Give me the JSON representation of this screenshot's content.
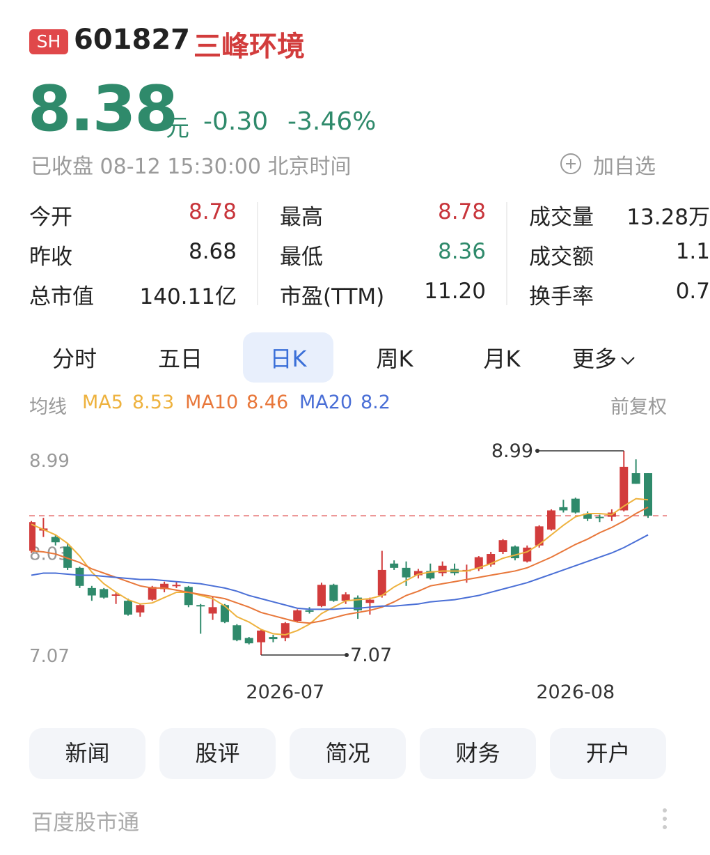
{
  "header": {
    "market": "SH",
    "code": "601827",
    "name": "三峰环境",
    "price": "8.38",
    "unit": "元",
    "change": "-0.30",
    "change_pct": "-3.46%",
    "status": "已收盘 08-12 15:30:00 北京时间",
    "watch": "加自选"
  },
  "stats": [
    [
      {
        "label": "今开",
        "value": "8.78"
      },
      {
        "label": "最高",
        "value": "8.78"
      },
      {
        "label": "成交量",
        "value": "13.28万"
      }
    ],
    [
      {
        "label": "昨收",
        "value": "8.68"
      },
      {
        "label": "最低",
        "value": "8.36"
      },
      {
        "label": "成交额",
        "value": "1.1"
      }
    ],
    [
      {
        "label": "总市值",
        "value": "140.11亿"
      },
      {
        "label": "市盈(TTM)",
        "value": "11.20"
      },
      {
        "label": "换手率",
        "value": "0.7"
      }
    ]
  ],
  "tabs": [
    "分时",
    "五日",
    "日K",
    "周K",
    "月K",
    "更多"
  ],
  "ma_label": "均线",
  "adjust": "前复权",
  "chart_data": {
    "type": "candlestick",
    "categories": [
      null,
      null,
      null,
      null,
      null,
      null,
      null,
      null,
      null,
      null,
      null,
      null,
      null,
      null,
      null,
      null,
      null,
      null,
      null,
      null,
      null,
      "2026-07",
      null,
      null,
      null,
      null,
      null,
      null,
      null,
      null,
      null,
      null,
      null,
      null,
      null,
      null,
      null,
      null,
      null,
      null,
      null,
      null,
      null,
      null,
      null,
      "2026-08",
      null,
      null,
      null,
      null,
      null,
      null
    ],
    "open": [
      8.05,
      8.24,
      8.18,
      8.09,
      7.89,
      7.7,
      7.69,
      7.63,
      7.58,
      7.47,
      7.59,
      7.69,
      7.72,
      7.71,
      7.54,
      7.46,
      7.54,
      7.35,
      7.23,
      7.19,
      7.24,
      7.23,
      7.39,
      7.49,
      7.53,
      7.73,
      7.58,
      7.61,
      7.56,
      7.63,
      7.93,
      7.89,
      7.82,
      7.86,
      7.84,
      7.88,
      7.86,
      7.88,
      7.92,
      8.04,
      8.09,
      7.95,
      8.1,
      8.25,
      8.46,
      8.54,
      8.4,
      8.37,
      8.37,
      8.43,
      8.78,
      8.78
    ],
    "high": [
      8.33,
      8.36,
      8.2,
      8.12,
      7.9,
      7.72,
      7.7,
      7.66,
      7.6,
      7.55,
      7.72,
      7.76,
      7.76,
      7.72,
      7.55,
      7.62,
      7.55,
      7.36,
      7.24,
      7.31,
      7.26,
      7.38,
      7.5,
      7.52,
      7.75,
      7.74,
      7.66,
      7.63,
      7.61,
      8.05,
      7.96,
      7.95,
      7.88,
      7.93,
      7.95,
      7.93,
      7.92,
      8.0,
      8.04,
      8.16,
      8.1,
      8.1,
      8.29,
      8.44,
      8.53,
      8.55,
      8.42,
      8.39,
      8.44,
      8.99,
      8.91,
      8.78
    ],
    "low": [
      8.03,
      8.18,
      8.1,
      7.87,
      7.7,
      7.58,
      7.6,
      7.55,
      7.44,
      7.43,
      7.58,
      7.66,
      7.7,
      7.52,
      7.27,
      7.4,
      7.37,
      7.2,
      7.17,
      7.07,
      7.19,
      7.2,
      7.38,
      7.46,
      7.52,
      7.57,
      7.55,
      7.41,
      7.45,
      7.61,
      7.87,
      7.72,
      7.79,
      7.78,
      7.81,
      7.82,
      7.75,
      7.86,
      7.9,
      8.02,
      7.96,
      7.94,
      8.08,
      8.24,
      8.41,
      8.4,
      8.33,
      8.32,
      8.33,
      8.42,
      8.68,
      8.36
    ],
    "close": [
      8.32,
      8.26,
      8.13,
      7.89,
      7.72,
      7.63,
      7.61,
      7.64,
      7.45,
      7.54,
      7.71,
      7.74,
      7.73,
      7.54,
      7.53,
      7.52,
      7.38,
      7.21,
      7.18,
      7.3,
      7.22,
      7.37,
      7.49,
      7.48,
      7.73,
      7.58,
      7.64,
      7.49,
      7.59,
      7.87,
      7.89,
      7.8,
      7.86,
      7.79,
      7.91,
      7.84,
      7.87,
      7.99,
      8.02,
      8.15,
      7.98,
      8.08,
      8.28,
      8.43,
      8.43,
      8.41,
      8.35,
      8.36,
      8.41,
      8.84,
      8.68,
      8.38
    ],
    "up_color": "#d23c3c",
    "down_color": "#2f8a6b",
    "series": [
      {
        "name": "MA5",
        "color": "#eeb23e",
        "values": [
          8.3,
          8.25,
          8.2,
          8.12,
          8.0,
          7.85,
          7.74,
          7.66,
          7.59,
          7.55,
          7.56,
          7.61,
          7.66,
          7.66,
          7.63,
          7.6,
          7.53,
          7.43,
          7.38,
          7.31,
          7.27,
          7.26,
          7.3,
          7.36,
          7.46,
          7.52,
          7.58,
          7.59,
          7.6,
          7.63,
          7.71,
          7.77,
          7.83,
          7.85,
          7.86,
          7.86,
          7.86,
          7.89,
          7.93,
          7.98,
          8.01,
          8.04,
          8.11,
          8.2,
          8.29,
          8.37,
          8.4,
          8.4,
          8.39,
          8.47,
          8.54,
          8.53
        ]
      },
      {
        "name": "MA10",
        "color": "#e8773a",
        "values": [
          8.05,
          8.04,
          8.02,
          7.98,
          7.94,
          7.88,
          7.84,
          7.8,
          7.76,
          7.72,
          7.7,
          7.7,
          7.68,
          7.66,
          7.64,
          7.62,
          7.6,
          7.56,
          7.52,
          7.47,
          7.44,
          7.41,
          7.38,
          7.37,
          7.39,
          7.42,
          7.45,
          7.47,
          7.49,
          7.52,
          7.57,
          7.63,
          7.67,
          7.72,
          7.74,
          7.76,
          7.78,
          7.8,
          7.82,
          7.84,
          7.86,
          7.89,
          7.94,
          7.99,
          8.05,
          8.11,
          8.16,
          8.22,
          8.27,
          8.33,
          8.4,
          8.46
        ]
      },
      {
        "name": "MA20",
        "color": "#4a6fd6",
        "values": [
          7.82,
          7.84,
          7.84,
          7.83,
          7.82,
          7.82,
          7.81,
          7.8,
          7.79,
          7.78,
          7.78,
          7.77,
          7.76,
          7.75,
          7.74,
          7.72,
          7.7,
          7.67,
          7.63,
          7.6,
          7.57,
          7.54,
          7.51,
          7.5,
          7.5,
          7.5,
          7.51,
          7.51,
          7.52,
          7.53,
          7.53,
          7.54,
          7.55,
          7.57,
          7.58,
          7.59,
          7.61,
          7.63,
          7.66,
          7.69,
          7.72,
          7.75,
          7.79,
          7.83,
          7.87,
          7.91,
          7.95,
          7.99,
          8.03,
          8.08,
          8.14,
          8.2
        ]
      }
    ],
    "ylim": [
      7.07,
      8.99
    ],
    "yticks": [
      8.99,
      8.03,
      7.07
    ],
    "grid": false
  },
  "buttons": [
    "新闻",
    "股评",
    "简况",
    "财务",
    "开户"
  ],
  "footer": "百度股市通"
}
